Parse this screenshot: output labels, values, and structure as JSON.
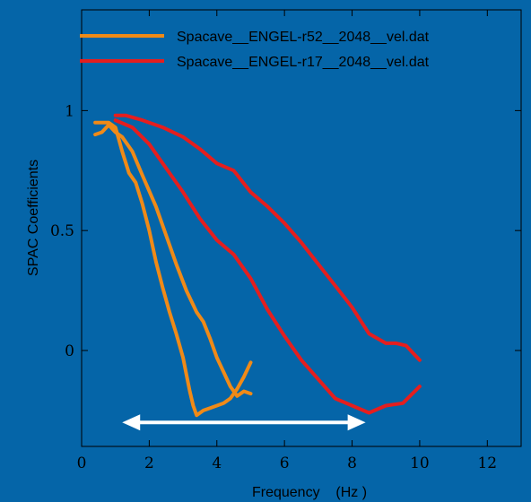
{
  "chart_data": {
    "type": "line",
    "xlabel": "Frequency    (Hz )",
    "ylabel": "SPAC Coefficients",
    "xlim": [
      0,
      13
    ],
    "ylim": [
      -0.4,
      1.42
    ],
    "x_ticks": [
      0,
      2,
      4,
      6,
      8,
      10,
      12
    ],
    "y_ticks": [
      0,
      0.5,
      1
    ],
    "x_tick_labels": [
      "0",
      "2",
      "4",
      "6",
      "8",
      "10",
      "12"
    ],
    "y_tick_labels": [
      "0",
      "0.5",
      "1"
    ],
    "grid": false,
    "legend": "top-right",
    "colors": {
      "background": "#0565a8",
      "axis": "#000000",
      "annotation_arrow": "#ffffff"
    },
    "series": [
      {
        "name": "Spacave__ENGEL-r52__2048__vel.dat",
        "color": "#f08a17",
        "segments": [
          [
            [
              0.4,
              0.9
            ],
            [
              0.6,
              0.91
            ],
            [
              0.8,
              0.94
            ],
            [
              1.0,
              0.91
            ],
            [
              1.2,
              0.89
            ],
            [
              1.5,
              0.83
            ],
            [
              1.8,
              0.73
            ],
            [
              2.2,
              0.6
            ],
            [
              2.5,
              0.48
            ],
            [
              2.8,
              0.36
            ],
            [
              3.1,
              0.25
            ],
            [
              3.4,
              0.16
            ],
            [
              3.6,
              0.12
            ],
            [
              3.8,
              0.05
            ],
            [
              4.0,
              -0.03
            ],
            [
              4.2,
              -0.09
            ],
            [
              4.4,
              -0.15
            ],
            [
              4.6,
              -0.19
            ],
            [
              4.8,
              -0.17
            ],
            [
              5.0,
              -0.18
            ]
          ],
          [
            [
              0.4,
              0.95
            ],
            [
              0.6,
              0.95
            ],
            [
              0.8,
              0.95
            ],
            [
              1.0,
              0.93
            ],
            [
              1.1,
              0.88
            ],
            [
              1.2,
              0.83
            ],
            [
              1.4,
              0.74
            ],
            [
              1.6,
              0.7
            ],
            [
              1.8,
              0.61
            ],
            [
              2.0,
              0.5
            ],
            [
              2.2,
              0.37
            ],
            [
              2.4,
              0.26
            ],
            [
              2.6,
              0.16
            ],
            [
              2.8,
              0.07
            ],
            [
              3.0,
              -0.03
            ],
            [
              3.1,
              -0.1
            ],
            [
              3.2,
              -0.17
            ],
            [
              3.3,
              -0.23
            ],
            [
              3.4,
              -0.27
            ],
            [
              3.6,
              -0.25
            ],
            [
              3.8,
              -0.24
            ],
            [
              4.0,
              -0.23
            ],
            [
              4.2,
              -0.22
            ],
            [
              4.4,
              -0.2
            ],
            [
              4.6,
              -0.16
            ],
            [
              4.8,
              -0.11
            ],
            [
              5.0,
              -0.05
            ]
          ]
        ]
      },
      {
        "name": "Spacave__ENGEL-r17__2048__vel.dat",
        "color": "#e51e1e",
        "segments": [
          [
            [
              1.0,
              0.98
            ],
            [
              1.3,
              0.98
            ],
            [
              1.8,
              0.96
            ],
            [
              2.4,
              0.93
            ],
            [
              3.0,
              0.89
            ],
            [
              3.5,
              0.84
            ],
            [
              4.0,
              0.78
            ],
            [
              4.5,
              0.75
            ],
            [
              5.0,
              0.66
            ],
            [
              5.5,
              0.6
            ],
            [
              6.0,
              0.53
            ],
            [
              6.5,
              0.45
            ],
            [
              7.0,
              0.36
            ],
            [
              7.5,
              0.27
            ],
            [
              8.0,
              0.18
            ],
            [
              8.5,
              0.07
            ],
            [
              9.0,
              0.03
            ],
            [
              9.3,
              0.03
            ],
            [
              9.6,
              0.02
            ],
            [
              10.0,
              -0.04
            ]
          ],
          [
            [
              1.0,
              0.96
            ],
            [
              1.5,
              0.93
            ],
            [
              2.0,
              0.86
            ],
            [
              2.5,
              0.76
            ],
            [
              3.0,
              0.66
            ],
            [
              3.5,
              0.55
            ],
            [
              4.0,
              0.46
            ],
            [
              4.5,
              0.4
            ],
            [
              5.0,
              0.3
            ],
            [
              5.5,
              0.17
            ],
            [
              6.0,
              0.06
            ],
            [
              6.5,
              -0.04
            ],
            [
              7.0,
              -0.12
            ],
            [
              7.5,
              -0.2
            ],
            [
              8.0,
              -0.23
            ],
            [
              8.5,
              -0.26
            ],
            [
              9.0,
              -0.23
            ],
            [
              9.5,
              -0.22
            ],
            [
              10.0,
              -0.15
            ]
          ]
        ]
      }
    ],
    "annotations": [
      {
        "type": "double-arrow",
        "x_start": 1.2,
        "x_end": 8.4,
        "y": -0.3,
        "color": "#ffffff"
      }
    ]
  }
}
